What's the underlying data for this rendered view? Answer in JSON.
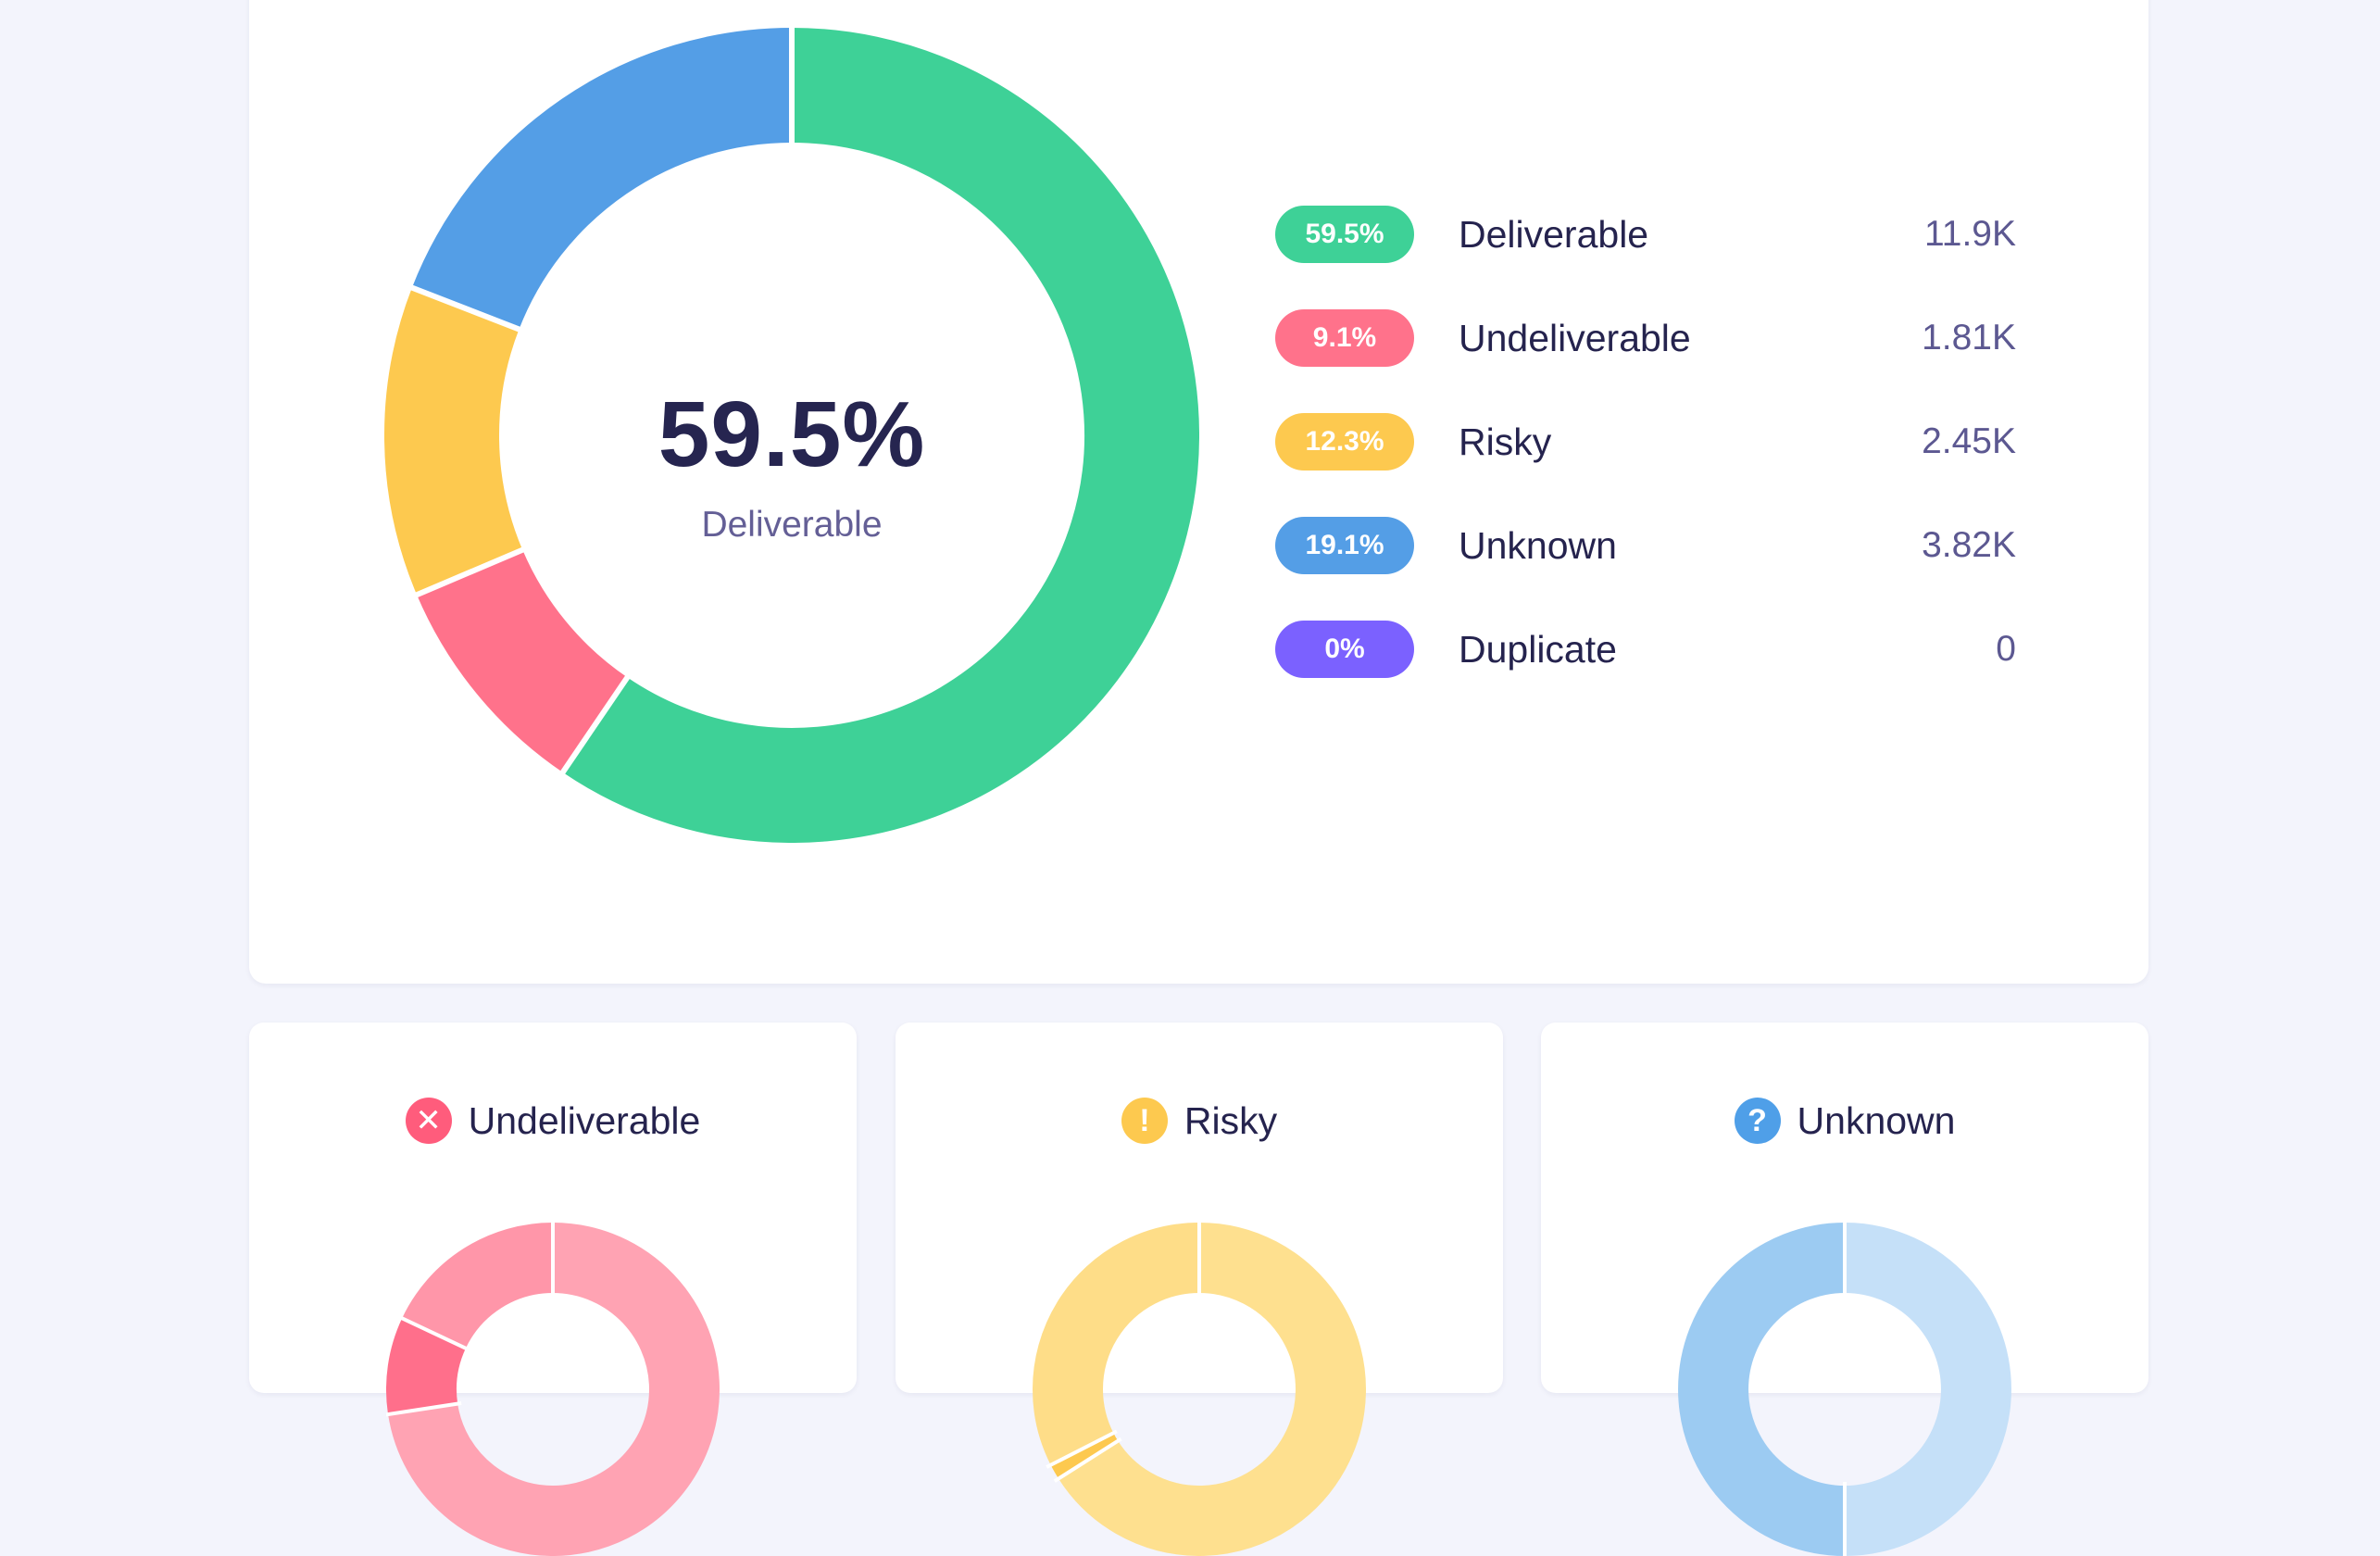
{
  "summary": {
    "center_value": "59.5%",
    "center_label": "Deliverable",
    "legend": [
      {
        "percent": "59.5%",
        "name": "Deliverable",
        "count": "11.9K",
        "color": "#3ed197"
      },
      {
        "percent": "9.1%",
        "name": "Undeliverable",
        "count": "1.81K",
        "color": "#ff728b"
      },
      {
        "percent": "12.3%",
        "name": "Risky",
        "count": "2.45K",
        "color": "#fdc94f"
      },
      {
        "percent": "19.1%",
        "name": "Unknown",
        "count": "3.82K",
        "color": "#549ee6"
      },
      {
        "percent": "0%",
        "name": "Duplicate",
        "count": "0",
        "color": "#7b61ff"
      }
    ]
  },
  "chart_data": [
    {
      "type": "pie",
      "categories": [
        "Deliverable",
        "Undeliverable",
        "Risky",
        "Unknown",
        "Duplicate"
      ],
      "values": [
        59.5,
        9.1,
        12.3,
        19.1,
        0
      ],
      "colors": [
        "#3ed197",
        "#ff728b",
        "#fdc94f",
        "#549ee6",
        "#7b61ff"
      ]
    },
    {
      "type": "pie",
      "title": "Undeliverable",
      "values": [
        72.6,
        9.4,
        18.0
      ],
      "colors": [
        "#ffa3b3",
        "#ff6f8b",
        "#ff96a9"
      ]
    },
    {
      "type": "pie",
      "title": "Risky",
      "values": [
        66.0,
        1.5,
        32.5
      ],
      "colors": [
        "#fee08f",
        "#fdc94f",
        "#fedd88"
      ]
    },
    {
      "type": "pie",
      "title": "Unknown",
      "values": [
        50.0,
        50.0
      ],
      "colors": [
        "#c5e0f8",
        "#9ccbf2"
      ]
    }
  ],
  "cards": [
    {
      "title": "Undeliverable",
      "icon": "close-icon",
      "icon_glyph": "✕",
      "icon_color": "#ff5c7c"
    },
    {
      "title": "Risky",
      "icon": "warning-icon",
      "icon_glyph": "!",
      "icon_color": "#fdc94f"
    },
    {
      "title": "Unknown",
      "icon": "question-icon",
      "icon_glyph": "?",
      "icon_color": "#4f9fe8"
    }
  ]
}
